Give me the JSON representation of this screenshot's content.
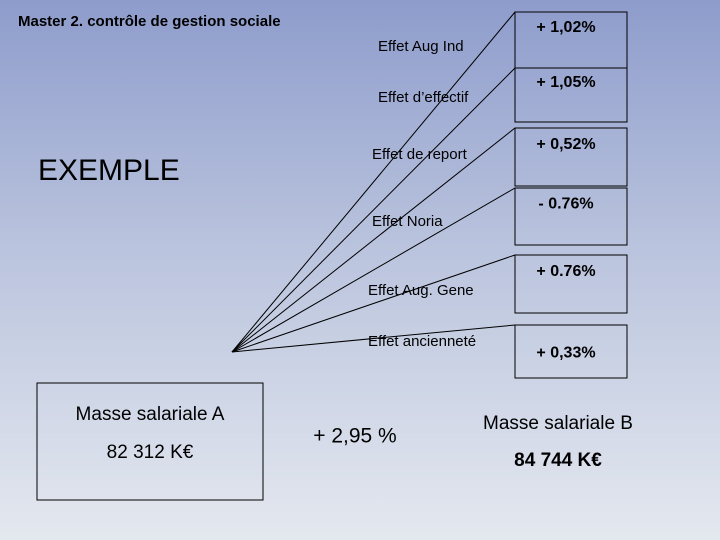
{
  "header": {
    "title": "Master 2. contrôle de gestion sociale"
  },
  "example_label": "EXEMPLE",
  "source": {
    "label": "Masse salariale A",
    "amount": "82 312 K€"
  },
  "effects": [
    {
      "label": "Effet Aug Ind",
      "value": "+ 1,02%"
    },
    {
      "label": "Effet d’effectif",
      "value": "+ 1,05%"
    },
    {
      "label": "Effet de report",
      "value": "+ 0,52%"
    },
    {
      "label": "Effet Noria",
      "value": "- 0.76%"
    },
    {
      "label": "Effet Aug. Gene",
      "value": "+ 0.76%"
    },
    {
      "label": "Effet ancienneté",
      "value": "+ 0,33%"
    }
  ],
  "total": "+ 2,95 %",
  "result": {
    "label": "Masse salariale B",
    "amount": "84 744 K€"
  }
}
